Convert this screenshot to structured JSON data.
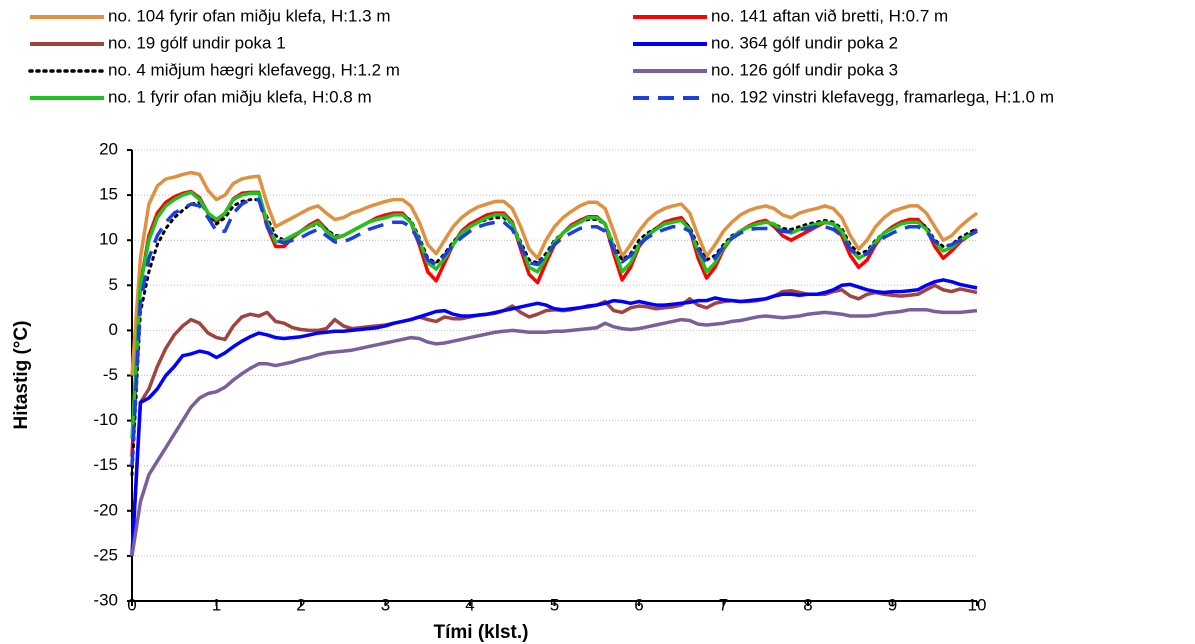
{
  "chart_data": {
    "type": "line",
    "xlabel": "Tími (klst.)",
    "ylabel": "Hitastig (°C)",
    "xlim": [
      0,
      10
    ],
    "xticks": [
      0,
      1,
      2,
      3,
      4,
      5,
      6,
      7,
      8,
      9,
      10
    ],
    "ylim": [
      -30,
      20
    ],
    "yticks": [
      -30,
      -25,
      -20,
      -15,
      -10,
      -5,
      0,
      5,
      10,
      15,
      20
    ],
    "grid": true,
    "legend_position": "top",
    "x": [
      0,
      0.1,
      0.2,
      0.3,
      0.4,
      0.5,
      0.6,
      0.7,
      0.8,
      0.9,
      1,
      1.1,
      1.2,
      1.3,
      1.4,
      1.5,
      1.6,
      1.7,
      1.8,
      1.9,
      2,
      2.1,
      2.2,
      2.3,
      2.4,
      2.5,
      2.6,
      2.7,
      2.8,
      2.9,
      3,
      3.1,
      3.2,
      3.3,
      3.4,
      3.5,
      3.6,
      3.7,
      3.8,
      3.9,
      4,
      4.1,
      4.2,
      4.3,
      4.4,
      4.5,
      4.6,
      4.7,
      4.8,
      4.9,
      5,
      5.1,
      5.2,
      5.3,
      5.4,
      5.5,
      5.6,
      5.7,
      5.8,
      5.9,
      6,
      6.1,
      6.2,
      6.3,
      6.4,
      6.5,
      6.6,
      6.7,
      6.8,
      6.9,
      7,
      7.1,
      7.2,
      7.3,
      7.4,
      7.5,
      7.6,
      7.7,
      7.8,
      7.9,
      8,
      8.1,
      8.2,
      8.3,
      8.4,
      8.5,
      8.6,
      8.7,
      8.8,
      8.9,
      9,
      9.1,
      9.2,
      9.3,
      9.4,
      9.5,
      9.6,
      9.7,
      9.8,
      9.9,
      10
    ],
    "series": [
      {
        "name": "no. 104 fyrir ofan miðju klefa, H:1.3 m",
        "color": "#e0913f",
        "line_style": "solid",
        "values": [
          -5,
          8,
          14,
          16,
          16.8,
          17,
          17.3,
          17.5,
          17.3,
          15.5,
          14.5,
          15,
          16.3,
          16.8,
          17,
          17.1,
          14,
          11.5,
          12,
          12.5,
          13,
          13.5,
          13.8,
          13,
          12.3,
          12.5,
          13,
          13.3,
          13.7,
          14,
          14.3,
          14.5,
          14.5,
          13.8,
          12,
          9.5,
          8.5,
          10,
          11.5,
          12.5,
          13.2,
          13.7,
          14,
          14.3,
          14.3,
          13.5,
          11.5,
          9,
          8,
          10,
          11.5,
          12.5,
          13.2,
          13.8,
          14.2,
          14.2,
          13.5,
          11,
          8.2,
          9.5,
          11,
          12.2,
          13,
          13.5,
          13.8,
          14,
          13,
          10.5,
          8.2,
          9.5,
          11,
          12,
          12.8,
          13.3,
          13.6,
          13.8,
          13.5,
          12.8,
          12.5,
          13,
          13.3,
          13.5,
          13.8,
          13.5,
          12.5,
          10.5,
          9,
          10,
          11.5,
          12.5,
          13.2,
          13.5,
          13.8,
          13.8,
          13,
          11.5,
          10,
          10.5,
          11.5,
          12.3,
          13
        ]
      },
      {
        "name": "no. 141 aftan við bretti, H:0.7 m",
        "color": "#ff0000",
        "line_style": "solid",
        "values": [
          -14,
          5,
          10.5,
          13,
          14.2,
          14.8,
          15.2,
          15.4,
          14.7,
          13,
          12,
          13,
          14.6,
          15.2,
          15.3,
          15.3,
          11.5,
          9.3,
          9.3,
          10.3,
          11,
          11.7,
          12.2,
          11.2,
          10.2,
          10.5,
          11,
          11.5,
          12,
          12.5,
          12.8,
          13,
          13,
          12,
          9.5,
          6.5,
          5.5,
          7.5,
          9.5,
          11,
          11.8,
          12.3,
          12.8,
          13,
          13,
          12,
          9,
          6.2,
          5.3,
          7.5,
          9.5,
          10.8,
          11.7,
          12.2,
          12.6,
          12.6,
          11.8,
          8.5,
          5.6,
          7,
          9.3,
          10.5,
          11.3,
          12,
          12.3,
          12.5,
          11.3,
          8,
          5.8,
          7,
          9,
          10.3,
          11,
          11.6,
          12,
          12.2,
          11.5,
          10.5,
          10,
          10.5,
          11,
          11.5,
          12,
          11.8,
          10.5,
          8.3,
          7,
          7.8,
          9.5,
          10.8,
          11.5,
          12,
          12.3,
          12.3,
          11.3,
          9.3,
          8,
          8.8,
          9.8,
          10.5,
          11.2
        ]
      },
      {
        "name": "no. 19 gólf undir poka 1",
        "color": "#a0443f",
        "line_style": "solid",
        "values": [
          -25,
          -8,
          -6.5,
          -4,
          -2,
          -0.5,
          0.5,
          1.2,
          0.8,
          -0.3,
          -0.8,
          -1,
          0.5,
          1.5,
          1.8,
          1.6,
          2,
          1,
          0.8,
          0.3,
          0.1,
          0,
          0,
          0.2,
          1.2,
          0.5,
          0.2,
          0.3,
          0.4,
          0.5,
          0.6,
          0.8,
          1,
          1.2,
          1.5,
          1.2,
          1,
          1.5,
          1.3,
          1.3,
          1.5,
          1.7,
          1.8,
          1.9,
          2.2,
          2.7,
          2,
          1.5,
          1.8,
          2.2,
          2.3,
          2.2,
          2.3,
          2.5,
          2.6,
          2.8,
          3.2,
          2.2,
          2,
          2.5,
          2.7,
          2.6,
          2.4,
          2.5,
          2.6,
          2.8,
          3.5,
          2.8,
          2.5,
          3,
          3.2,
          3.3,
          3.2,
          3.2,
          3.3,
          3.5,
          3.8,
          4.3,
          4.4,
          4.2,
          4,
          4,
          4,
          4.3,
          4.5,
          3.8,
          3.5,
          4,
          4.2,
          4,
          3.9,
          3.8,
          3.9,
          4,
          4.5,
          5,
          4.5,
          4.3,
          4.6,
          4.4,
          4.2
        ]
      },
      {
        "name": "no. 364 gólf undir poka 2",
        "color": "#0000ff",
        "line_style": "solid",
        "values": [
          -25,
          -8,
          -7.5,
          -6.5,
          -5,
          -4,
          -2.8,
          -2.6,
          -2.3,
          -2.5,
          -3,
          -2.5,
          -1.8,
          -1.2,
          -0.7,
          -0.3,
          -0.5,
          -0.8,
          -0.9,
          -0.8,
          -0.7,
          -0.5,
          -0.3,
          -0.2,
          -0.1,
          -0.1,
          0,
          0.1,
          0.2,
          0.3,
          0.5,
          0.8,
          1,
          1.2,
          1.5,
          1.8,
          2.1,
          2.2,
          1.8,
          1.6,
          1.6,
          1.7,
          1.8,
          2,
          2.2,
          2.4,
          2.6,
          2.8,
          3,
          2.8,
          2.4,
          2.3,
          2.4,
          2.5,
          2.7,
          2.8,
          3,
          3.3,
          3.2,
          3,
          3.2,
          3,
          2.8,
          2.8,
          2.9,
          3,
          3.1,
          3.3,
          3.3,
          3.6,
          3.4,
          3.3,
          3.2,
          3.3,
          3.4,
          3.5,
          3.8,
          4,
          4,
          3.9,
          4,
          4,
          4.2,
          4.5,
          5,
          5.1,
          4.8,
          4.5,
          4.3,
          4.2,
          4.3,
          4.3,
          4.4,
          4.5,
          5,
          5.4,
          5.6,
          5.4,
          5.1,
          4.9,
          4.7
        ]
      },
      {
        "name": "no. 4 miðjum hægri klefavegg, H:1.2 m",
        "color": "#000000",
        "line_style": "dotted",
        "values": [
          -16,
          2,
          6.5,
          9.5,
          11.3,
          12.5,
          13.3,
          14,
          14.2,
          13,
          11.8,
          12.5,
          13.8,
          14.3,
          14.5,
          14.5,
          12.5,
          10.5,
          10,
          10.5,
          11,
          11.5,
          11.8,
          11.2,
          10.5,
          10.5,
          11,
          11.5,
          12,
          12.3,
          12.5,
          12.8,
          12.8,
          12.2,
          10.3,
          8,
          7.5,
          8.5,
          9.8,
          10.8,
          11.5,
          12,
          12.3,
          12.5,
          12.5,
          11.8,
          9.8,
          7.8,
          7.5,
          8.5,
          10,
          10.8,
          11.5,
          12,
          12.3,
          12.3,
          11.8,
          9.5,
          7.8,
          8.5,
          10,
          10.8,
          11.3,
          11.8,
          12,
          12.2,
          11.5,
          9.3,
          7.8,
          8.3,
          9.5,
          10.5,
          11,
          11.5,
          11.8,
          12,
          11.8,
          11.3,
          11.2,
          11.5,
          11.8,
          12,
          12.2,
          12,
          11.3,
          9.5,
          8.5,
          8.8,
          10,
          10.8,
          11.3,
          11.8,
          12,
          12,
          11.5,
          10,
          9.3,
          9.5,
          10.3,
          10.8,
          11.3
        ]
      },
      {
        "name": "no. 126 gólf undir poka 3",
        "color": "#7b5f9c",
        "line_style": "solid",
        "values": [
          -25,
          -19,
          -16,
          -14.5,
          -13,
          -11.5,
          -10,
          -8.5,
          -7.5,
          -7,
          -6.8,
          -6.3,
          -5.5,
          -4.8,
          -4.2,
          -3.7,
          -3.7,
          -3.9,
          -3.7,
          -3.5,
          -3.2,
          -3,
          -2.7,
          -2.5,
          -2.4,
          -2.3,
          -2.2,
          -2,
          -1.8,
          -1.6,
          -1.4,
          -1.2,
          -1,
          -0.8,
          -0.9,
          -1.3,
          -1.5,
          -1.4,
          -1.2,
          -1,
          -0.8,
          -0.6,
          -0.4,
          -0.2,
          -0.1,
          0,
          -0.1,
          -0.2,
          -0.2,
          -0.2,
          -0.1,
          -0.1,
          0,
          0.1,
          0.2,
          0.3,
          0.8,
          0.4,
          0.2,
          0.1,
          0.2,
          0.4,
          0.6,
          0.8,
          1,
          1.2,
          1.1,
          0.7,
          0.6,
          0.7,
          0.8,
          1,
          1.1,
          1.3,
          1.5,
          1.6,
          1.5,
          1.4,
          1.5,
          1.6,
          1.8,
          1.9,
          2,
          1.9,
          1.8,
          1.6,
          1.6,
          1.6,
          1.7,
          1.9,
          2,
          2.1,
          2.3,
          2.3,
          2.3,
          2.1,
          2,
          2,
          2,
          2.1,
          2.2
        ]
      },
      {
        "name": "no. 1 fyrir ofan miðju klefa, H:0.8 m",
        "color": "#1fc21f",
        "line_style": "solid",
        "values": [
          -12,
          5,
          10,
          12.5,
          13.8,
          14.5,
          15,
          15.3,
          14.5,
          13,
          12.3,
          13,
          14.5,
          15,
          15.2,
          15.2,
          12,
          9.8,
          10,
          10.5,
          11,
          11.5,
          12,
          11,
          10.3,
          10.5,
          11,
          11.5,
          12,
          12.3,
          12.5,
          12.8,
          12.8,
          12,
          10,
          7.5,
          6.8,
          8,
          9.5,
          10.8,
          11.5,
          12,
          12.5,
          12.8,
          12.8,
          11.8,
          9.5,
          7,
          6.5,
          8,
          9.8,
          10.8,
          11.5,
          12,
          12.5,
          12.5,
          11.8,
          9.2,
          6.5,
          7.5,
          9.5,
          10.5,
          11.2,
          11.8,
          12,
          12.2,
          11.2,
          8.8,
          6.5,
          7.5,
          9.2,
          10.3,
          11,
          11.5,
          11.8,
          12,
          11.8,
          11,
          10.8,
          11.2,
          11.5,
          11.8,
          12,
          11.8,
          11,
          9,
          8,
          8.5,
          9.8,
          10.8,
          11.3,
          11.8,
          12,
          12,
          11.2,
          9.8,
          8.8,
          9.2,
          10,
          10.5,
          11
        ]
      },
      {
        "name": "no. 192 vinstri klefavegg, framarlega, H:1.0 m",
        "color": "#1c3fe0",
        "line_style": "dashed",
        "values": [
          -15,
          3,
          8,
          10.5,
          12,
          13,
          13.5,
          14,
          13.8,
          12.5,
          11,
          11,
          13,
          14,
          14.5,
          14.5,
          11.5,
          10,
          9.7,
          10,
          10.3,
          10.8,
          11.2,
          10.5,
          9.8,
          9.8,
          10.2,
          10.7,
          11.2,
          11.5,
          11.8,
          12,
          12,
          11.5,
          9.8,
          7.8,
          7.3,
          8.3,
          9.5,
          10.3,
          11,
          11.5,
          11.8,
          12,
          12,
          11.2,
          9.3,
          7.5,
          7.3,
          8.3,
          9.5,
          10.3,
          10.8,
          11.3,
          11.5,
          11.5,
          11,
          9,
          7.6,
          8.3,
          9.5,
          10.3,
          10.8,
          11.2,
          11.5,
          11.5,
          11,
          9,
          7.5,
          8,
          9.3,
          10.2,
          10.8,
          11.2,
          11.3,
          11.3,
          11.2,
          11,
          11,
          11.2,
          11.3,
          11.5,
          11.5,
          11.2,
          10.5,
          9,
          8.3,
          8.5,
          9.5,
          10.3,
          10.8,
          11.2,
          11.5,
          11.5,
          11,
          9.8,
          9.3,
          9.5,
          10,
          10.5,
          11
        ]
      }
    ]
  }
}
